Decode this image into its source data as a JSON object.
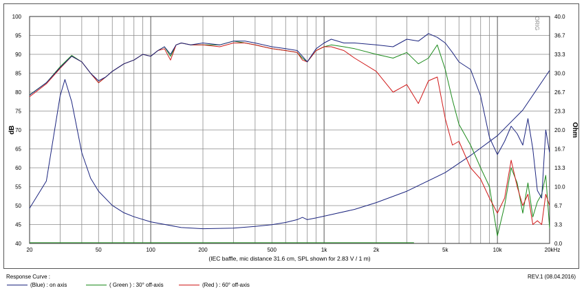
{
  "chart_data": {
    "type": "line",
    "xlabel": "(IEC baffle, mic distance 31.6 cm, SPL shown for 2.83 V / 1 m)",
    "ylabel_left": "dB",
    "ylabel_right": "Ohm",
    "watermark": "ORIG",
    "x_scale": "log",
    "xlim": [
      20,
      20000
    ],
    "ylim_left": [
      40,
      100
    ],
    "ylim_right": [
      0,
      40
    ],
    "x_ticks": [
      {
        "value": 20,
        "label": "20"
      },
      {
        "value": 50,
        "label": "50"
      },
      {
        "value": 100,
        "label": "100"
      },
      {
        "value": 200,
        "label": "200"
      },
      {
        "value": 500,
        "label": "500"
      },
      {
        "value": 1000,
        "label": "1k"
      },
      {
        "value": 2000,
        "label": "2k"
      },
      {
        "value": 5000,
        "label": "5k"
      },
      {
        "value": 10000,
        "label": "10k"
      },
      {
        "value": 20000,
        "label": "20kHz"
      }
    ],
    "y_ticks_left": [
      "40",
      "45",
      "50",
      "55",
      "60",
      "65",
      "70",
      "75",
      "80",
      "85",
      "90",
      "95",
      "100"
    ],
    "y_ticks_right": [
      "0.0",
      "3.3",
      "6.7",
      "10.0",
      "13.3",
      "16.7",
      "20.0",
      "23.3",
      "26.7",
      "30.0",
      "33.3",
      "36.7",
      "40.0"
    ],
    "grid": true,
    "series": [
      {
        "name": "(Blue) : on axis",
        "color": "#1a237e",
        "axis": "left",
        "points": [
          [
            20,
            79.2
          ],
          [
            25,
            82.5
          ],
          [
            30,
            86.5
          ],
          [
            35,
            89.5
          ],
          [
            40,
            88
          ],
          [
            45,
            85
          ],
          [
            50,
            83
          ],
          [
            55,
            84
          ],
          [
            60,
            85.5
          ],
          [
            70,
            87.5
          ],
          [
            80,
            88.5
          ],
          [
            90,
            90
          ],
          [
            100,
            89.5
          ],
          [
            110,
            91
          ],
          [
            120,
            92
          ],
          [
            130,
            90
          ],
          [
            140,
            92.5
          ],
          [
            150,
            93
          ],
          [
            170,
            92.5
          ],
          [
            200,
            93
          ],
          [
            250,
            92.5
          ],
          [
            300,
            93.5
          ],
          [
            350,
            93.5
          ],
          [
            400,
            93
          ],
          [
            500,
            92
          ],
          [
            600,
            91.5
          ],
          [
            700,
            91
          ],
          [
            750,
            89.5
          ],
          [
            800,
            88
          ],
          [
            900,
            91.5
          ],
          [
            1000,
            93
          ],
          [
            1100,
            94
          ],
          [
            1300,
            93
          ],
          [
            1500,
            93
          ],
          [
            2000,
            92.5
          ],
          [
            2500,
            92
          ],
          [
            3000,
            94
          ],
          [
            3500,
            93.5
          ],
          [
            4000,
            95.5
          ],
          [
            4500,
            94.5
          ],
          [
            5000,
            93
          ],
          [
            5500,
            90.5
          ],
          [
            6000,
            88
          ],
          [
            7000,
            86
          ],
          [
            8000,
            79
          ],
          [
            9000,
            68
          ],
          [
            10000,
            63.5
          ],
          [
            11000,
            67
          ],
          [
            12000,
            71
          ],
          [
            13000,
            69
          ],
          [
            14000,
            66
          ],
          [
            15000,
            73
          ],
          [
            16000,
            65
          ],
          [
            17000,
            54
          ],
          [
            18000,
            52
          ],
          [
            19000,
            70
          ],
          [
            20000,
            64
          ]
        ]
      },
      {
        "name": "( Green ) : 30° off-axis",
        "color": "#1b8a1b",
        "axis": "left",
        "points": [
          [
            20,
            79.3
          ],
          [
            25,
            82.5
          ],
          [
            30,
            86.7
          ],
          [
            35,
            89.7
          ],
          [
            40,
            88
          ],
          [
            45,
            85
          ],
          [
            50,
            82.5
          ],
          [
            55,
            84
          ],
          [
            60,
            85.5
          ],
          [
            70,
            87.5
          ],
          [
            80,
            88.5
          ],
          [
            90,
            90
          ],
          [
            100,
            89.5
          ],
          [
            110,
            91
          ],
          [
            120,
            92
          ],
          [
            130,
            89.5
          ],
          [
            140,
            92.5
          ],
          [
            150,
            93
          ],
          [
            170,
            92.5
          ],
          [
            200,
            92.5
          ],
          [
            250,
            92.5
          ],
          [
            300,
            93.5
          ],
          [
            350,
            93
          ],
          [
            400,
            92.5
          ],
          [
            500,
            91.5
          ],
          [
            600,
            91
          ],
          [
            700,
            90.5
          ],
          [
            750,
            89
          ],
          [
            800,
            88
          ],
          [
            900,
            91
          ],
          [
            1000,
            92
          ],
          [
            1100,
            92.5
          ],
          [
            1300,
            92
          ],
          [
            1500,
            91.5
          ],
          [
            2000,
            90
          ],
          [
            2500,
            89
          ],
          [
            3000,
            90.5
          ],
          [
            3500,
            87.5
          ],
          [
            4000,
            89
          ],
          [
            4500,
            92.5
          ],
          [
            5000,
            86
          ],
          [
            5500,
            78
          ],
          [
            6000,
            71.5
          ],
          [
            7000,
            66
          ],
          [
            8000,
            60
          ],
          [
            9000,
            55
          ],
          [
            10000,
            42
          ],
          [
            11000,
            50
          ],
          [
            12000,
            60
          ],
          [
            13000,
            56
          ],
          [
            14000,
            48
          ],
          [
            15000,
            56
          ],
          [
            16000,
            47
          ],
          [
            17000,
            51
          ],
          [
            18000,
            53
          ],
          [
            19000,
            58
          ],
          [
            20000,
            44
          ]
        ]
      },
      {
        "name": "( Red ) : 60° off-axis",
        "color": "#d01818",
        "axis": "left",
        "points": [
          [
            20,
            78.8
          ],
          [
            25,
            82.2
          ],
          [
            30,
            86.3
          ],
          [
            35,
            89.5
          ],
          [
            40,
            88
          ],
          [
            45,
            85
          ],
          [
            50,
            82.5
          ],
          [
            55,
            84
          ],
          [
            60,
            85.5
          ],
          [
            70,
            87.5
          ],
          [
            80,
            88.5
          ],
          [
            90,
            90
          ],
          [
            100,
            89.5
          ],
          [
            110,
            91
          ],
          [
            120,
            91.5
          ],
          [
            130,
            88.5
          ],
          [
            140,
            92.5
          ],
          [
            150,
            93
          ],
          [
            170,
            92.5
          ],
          [
            200,
            92.5
          ],
          [
            250,
            92
          ],
          [
            300,
            93
          ],
          [
            350,
            93
          ],
          [
            400,
            92.5
          ],
          [
            500,
            91.5
          ],
          [
            600,
            91
          ],
          [
            700,
            90.5
          ],
          [
            750,
            88.5
          ],
          [
            800,
            88
          ],
          [
            900,
            91
          ],
          [
            1000,
            92
          ],
          [
            1100,
            92
          ],
          [
            1300,
            91
          ],
          [
            1500,
            89
          ],
          [
            2000,
            85.5
          ],
          [
            2500,
            80
          ],
          [
            3000,
            82
          ],
          [
            3500,
            77
          ],
          [
            4000,
            83
          ],
          [
            4500,
            84
          ],
          [
            5000,
            73
          ],
          [
            5500,
            66
          ],
          [
            6000,
            67
          ],
          [
            7000,
            60
          ],
          [
            8000,
            57
          ],
          [
            9000,
            52
          ],
          [
            10000,
            48
          ],
          [
            11000,
            52
          ],
          [
            12000,
            62
          ],
          [
            13000,
            55
          ],
          [
            14000,
            50
          ],
          [
            15000,
            53
          ],
          [
            16000,
            45
          ],
          [
            17000,
            46
          ],
          [
            18000,
            45
          ],
          [
            19000,
            53
          ],
          [
            20000,
            50
          ]
        ]
      },
      {
        "name": "Impedance",
        "color": "#1a237e",
        "axis": "right",
        "points": [
          [
            20,
            6.2
          ],
          [
            25,
            11
          ],
          [
            30,
            26
          ],
          [
            32,
            28.9
          ],
          [
            35,
            25
          ],
          [
            40,
            16
          ],
          [
            45,
            11.5
          ],
          [
            50,
            9.2
          ],
          [
            60,
            6.7
          ],
          [
            70,
            5.4
          ],
          [
            80,
            4.7
          ],
          [
            100,
            3.8
          ],
          [
            150,
            2.8
          ],
          [
            200,
            2.6
          ],
          [
            300,
            2.7
          ],
          [
            400,
            3
          ],
          [
            500,
            3.3
          ],
          [
            600,
            3.7
          ],
          [
            700,
            4.2
          ],
          [
            750,
            4.6
          ],
          [
            800,
            4.2
          ],
          [
            900,
            4.5
          ],
          [
            1000,
            4.8
          ],
          [
            1500,
            6
          ],
          [
            2000,
            7.2
          ],
          [
            3000,
            9.2
          ],
          [
            5000,
            12.5
          ],
          [
            7000,
            15.5
          ],
          [
            10000,
            19
          ],
          [
            14000,
            23.5
          ],
          [
            20000,
            30.5
          ]
        ]
      },
      {
        "name": "Baseline",
        "color": "#2e9b2e",
        "axis": "left",
        "points": [
          [
            20,
            40.2
          ],
          [
            3300,
            40.2
          ]
        ]
      }
    ]
  },
  "footer": {
    "response_curve": "Response Curve :",
    "revision": "REV.1 (08.04.2016)",
    "legend": [
      {
        "label": "(Blue)  : on axis",
        "color": "#1a237e"
      },
      {
        "label": "( Green ) : 30° off-axis",
        "color": "#1b8a1b"
      },
      {
        "label": "(Red ) : 60° off-axis",
        "color": "#d01818"
      }
    ]
  }
}
